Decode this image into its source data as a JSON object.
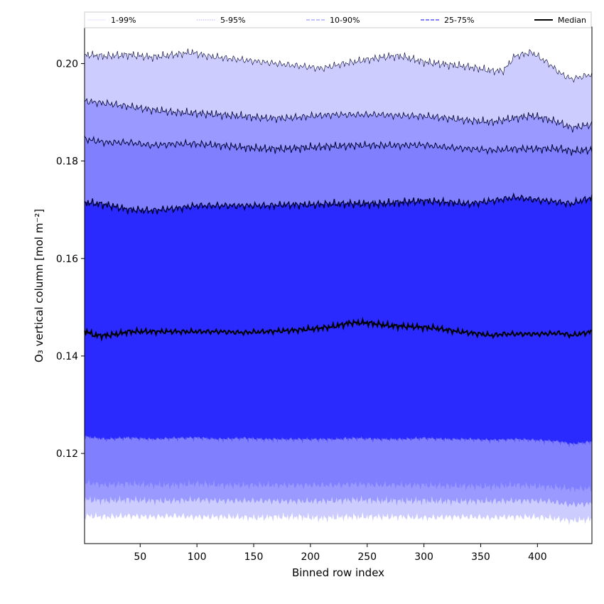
{
  "chart_data": {
    "type": "area",
    "title": "",
    "xlabel": "Binned row index",
    "ylabel": "O₃ vertical column [mol m⁻²]",
    "xlim": [
      1,
      448
    ],
    "ylim": [
      0.1015,
      0.2075
    ],
    "xticks": [
      50,
      100,
      150,
      200,
      250,
      300,
      350,
      400
    ],
    "yticks": [
      0.12,
      0.14,
      0.16,
      0.18,
      0.2
    ],
    "ytick_labels": [
      "0.12",
      "0.14",
      "0.16",
      "0.18",
      "0.20"
    ],
    "grid": false,
    "legend_position": "top",
    "legend": [
      {
        "label": "1-99%",
        "color": "#ccccff",
        "style": "solid",
        "width": 0.6
      },
      {
        "label": "5-95%",
        "color": "#9999ff",
        "style": "dotted",
        "width": 0.8
      },
      {
        "label": "10-90%",
        "color": "#8080ff",
        "style": "dashed",
        "width": 1
      },
      {
        "label": "25-75%",
        "color": "#5555ff",
        "style": "dashed",
        "width": 1.4
      },
      {
        "label": "Median",
        "color": "#000000",
        "style": "solid",
        "width": 2
      }
    ],
    "bands": [
      {
        "name": "1-99%",
        "color": "#ccccff",
        "x": [
          1,
          20,
          40,
          60,
          80,
          95,
          110,
          130,
          150,
          170,
          190,
          210,
          230,
          250,
          270,
          280,
          300,
          320,
          340,
          360,
          370,
          380,
          395,
          410,
          420,
          430,
          448
        ],
        "upper": [
          0.2018,
          0.2015,
          0.2018,
          0.2013,
          0.2018,
          0.2023,
          0.2015,
          0.201,
          0.2005,
          0.2,
          0.1995,
          0.199,
          0.2,
          0.2008,
          0.2015,
          0.2015,
          0.2003,
          0.1998,
          0.1993,
          0.1985,
          0.1985,
          0.2015,
          0.2023,
          0.2,
          0.198,
          0.1968,
          0.1978
        ],
        "lower": [
          0.1072,
          0.107,
          0.1072,
          0.107,
          0.1072,
          0.107,
          0.107,
          0.107,
          0.1068,
          0.107,
          0.107,
          0.1067,
          0.107,
          0.107,
          0.107,
          0.107,
          0.1068,
          0.107,
          0.107,
          0.1068,
          0.107,
          0.107,
          0.107,
          0.1068,
          0.1065,
          0.1062,
          0.1065
        ]
      },
      {
        "name": "5-95%",
        "color": "#9999ff",
        "x": [
          1,
          20,
          40,
          60,
          80,
          100,
          120,
          140,
          160,
          180,
          200,
          220,
          240,
          260,
          280,
          300,
          320,
          340,
          360,
          380,
          395,
          410,
          420,
          430,
          448
        ],
        "upper": [
          0.1923,
          0.1918,
          0.1912,
          0.1905,
          0.19,
          0.1898,
          0.1895,
          0.1892,
          0.1888,
          0.1888,
          0.1892,
          0.1895,
          0.1895,
          0.1895,
          0.1893,
          0.1892,
          0.1888,
          0.1883,
          0.188,
          0.1888,
          0.1893,
          0.1885,
          0.1878,
          0.1868,
          0.1875
        ],
        "lower": [
          0.1105,
          0.1103,
          0.1105,
          0.1103,
          0.1103,
          0.1105,
          0.1103,
          0.1103,
          0.1103,
          0.1102,
          0.1102,
          0.1103,
          0.1105,
          0.1103,
          0.1103,
          0.1103,
          0.1102,
          0.1102,
          0.1102,
          0.1103,
          0.1103,
          0.1102,
          0.1098,
          0.1095,
          0.1097
        ]
      },
      {
        "name": "10-90%",
        "color": "#8080ff",
        "x": [
          1,
          20,
          40,
          60,
          80,
          100,
          120,
          140,
          160,
          180,
          200,
          220,
          240,
          260,
          280,
          300,
          320,
          340,
          360,
          380,
          400,
          420,
          430,
          448
        ],
        "upper": [
          0.1845,
          0.1838,
          0.1838,
          0.1832,
          0.1835,
          0.1835,
          0.1832,
          0.1828,
          0.1825,
          0.1825,
          0.1828,
          0.183,
          0.1832,
          0.1832,
          0.1832,
          0.1833,
          0.1828,
          0.1825,
          0.1822,
          0.1825,
          0.1825,
          0.1825,
          0.182,
          0.1823
        ],
        "lower": [
          0.114,
          0.1135,
          0.1138,
          0.1135,
          0.1135,
          0.1138,
          0.1135,
          0.1135,
          0.1135,
          0.1135,
          0.1135,
          0.1135,
          0.1137,
          0.1135,
          0.1135,
          0.1135,
          0.1133,
          0.1133,
          0.1132,
          0.1135,
          0.1133,
          0.113,
          0.1127,
          0.1128
        ]
      },
      {
        "name": "25-75%",
        "color": "#5555ff",
        "x": [
          1,
          20,
          40,
          60,
          80,
          100,
          120,
          140,
          160,
          180,
          200,
          220,
          240,
          260,
          280,
          300,
          320,
          340,
          360,
          380,
          400,
          420,
          430,
          448
        ],
        "upper": [
          0.1715,
          0.171,
          0.17,
          0.1698,
          0.1702,
          0.1708,
          0.1708,
          0.1708,
          0.1708,
          0.171,
          0.171,
          0.1712,
          0.1712,
          0.1712,
          0.1715,
          0.1718,
          0.1715,
          0.1712,
          0.1718,
          0.1725,
          0.172,
          0.1715,
          0.1712,
          0.1725
        ],
        "lower": [
          0.1235,
          0.123,
          0.1233,
          0.123,
          0.1232,
          0.1233,
          0.123,
          0.1232,
          0.123,
          0.123,
          0.123,
          0.123,
          0.1232,
          0.123,
          0.123,
          0.1232,
          0.123,
          0.123,
          0.1228,
          0.123,
          0.1228,
          0.1225,
          0.122,
          0.1225
        ]
      }
    ],
    "inner_fill_color": "#2a2aff",
    "series": [
      {
        "name": "Median",
        "color": "#000000",
        "x": [
          1,
          10,
          20,
          30,
          40,
          60,
          80,
          100,
          120,
          140,
          160,
          180,
          200,
          220,
          235,
          250,
          270,
          290,
          310,
          330,
          350,
          360,
          370,
          380,
          400,
          420,
          430,
          448
        ],
        "values": [
          0.1452,
          0.1442,
          0.1442,
          0.1445,
          0.145,
          0.145,
          0.145,
          0.145,
          0.145,
          0.1448,
          0.145,
          0.1452,
          0.1455,
          0.146,
          0.1468,
          0.1468,
          0.1462,
          0.146,
          0.1457,
          0.145,
          0.1445,
          0.1442,
          0.1445,
          0.1445,
          0.1445,
          0.1447,
          0.1442,
          0.145
        ]
      }
    ]
  }
}
